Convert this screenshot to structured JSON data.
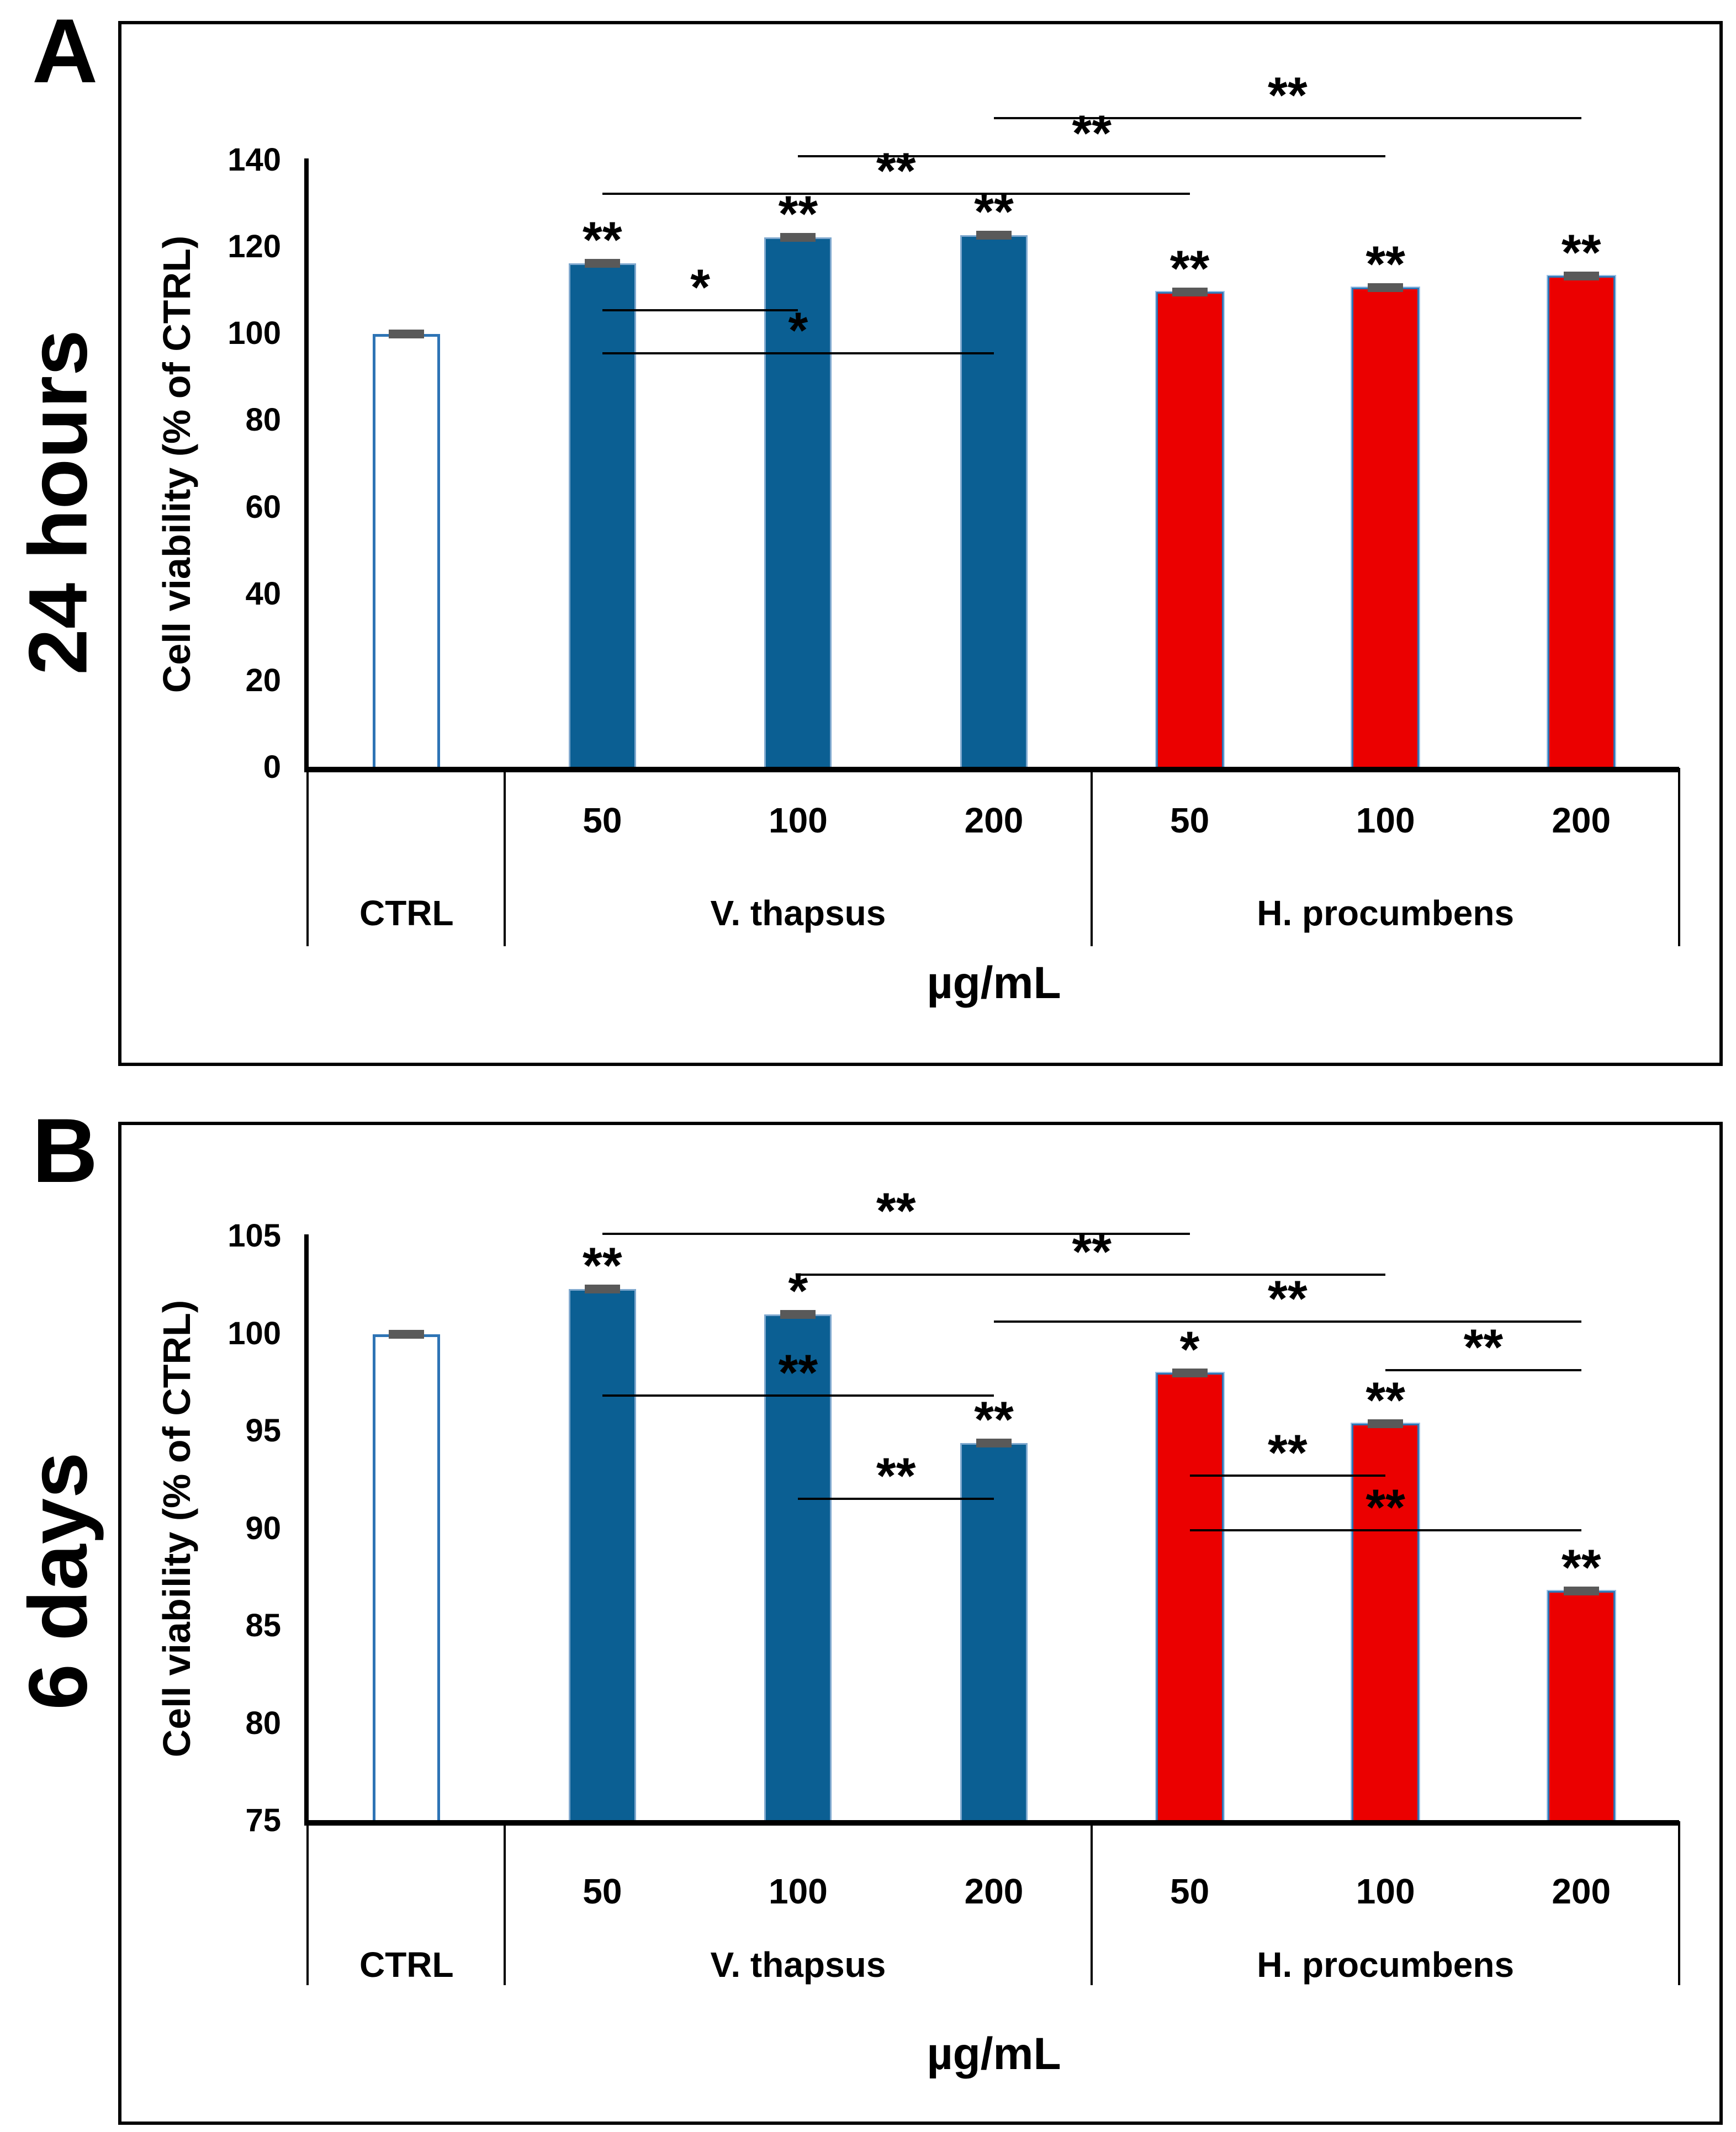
{
  "colors": {
    "blue_bar": "#0B5F93",
    "blue_bar_edge": "#7FA8CE",
    "red_bar": "#EB0000",
    "red_bar_edge": "#2E75B6",
    "ctrl_bar_border": "#2E74B5",
    "error_bar": "#595959",
    "line_color": "#000000"
  },
  "chart_data": [
    {
      "type": "bar",
      "panel_letter": "A",
      "time_label": "24 hours",
      "title": "",
      "ylabel": "Cell viability (% of CTRL)",
      "xlabel": "µg/mL",
      "ylim": [
        0,
        140
      ],
      "yticks": [
        0,
        20,
        40,
        60,
        80,
        100,
        120,
        140
      ],
      "grid": false,
      "legend": "none",
      "groups": [
        {
          "label": "CTRL",
          "span": 1
        },
        {
          "label": "V. thapsus",
          "span": 3
        },
        {
          "label": "H. procumbens",
          "span": 3
        }
      ],
      "bars": [
        {
          "category": "CTRL",
          "dose": "",
          "value": 100.0,
          "err": 0.4,
          "sig": "",
          "style": "ctrl"
        },
        {
          "category": "V. thapsus",
          "dose": "50",
          "value": 116.3,
          "err": 0.6,
          "sig": "**",
          "style": "blue"
        },
        {
          "category": "V. thapsus",
          "dose": "100",
          "value": 122.3,
          "err": 0.5,
          "sig": "**",
          "style": "blue"
        },
        {
          "category": "V. thapsus",
          "dose": "200",
          "value": 122.8,
          "err": 0.4,
          "sig": "**",
          "style": "blue"
        },
        {
          "category": "H. procumbens",
          "dose": "50",
          "value": 109.7,
          "err": 0.5,
          "sig": "**",
          "style": "red"
        },
        {
          "category": "H. procumbens",
          "dose": "100",
          "value": 110.7,
          "err": 0.6,
          "sig": "**",
          "style": "red"
        },
        {
          "category": "H. procumbens",
          "dose": "200",
          "value": 113.4,
          "err": 0.4,
          "sig": "**",
          "style": "red"
        }
      ],
      "comparisons": [
        {
          "bar1": 3,
          "bar2": 6,
          "y": 150.0,
          "label": "**"
        },
        {
          "bar1": 2,
          "bar2": 5,
          "y": 141.3,
          "label": "**"
        },
        {
          "bar1": 1,
          "bar2": 4,
          "y": 132.6,
          "label": "**"
        },
        {
          "bar1": 1,
          "bar2": 2,
          "y": 105.8,
          "label": "*"
        },
        {
          "bar1": 1,
          "bar2": 3,
          "y": 95.8,
          "label": "*"
        }
      ]
    },
    {
      "type": "bar",
      "panel_letter": "B",
      "time_label": "6 days",
      "title": "",
      "ylabel": "Cell viability (% of CTRL)",
      "xlabel": "µg/mL",
      "ylim": [
        75,
        105
      ],
      "yticks": [
        75,
        80,
        85,
        90,
        95,
        100,
        105
      ],
      "grid": false,
      "legend": "none",
      "groups": [
        {
          "label": "CTRL",
          "span": 1
        },
        {
          "label": "V. thapsus",
          "span": 3
        },
        {
          "label": "H. procumbens",
          "span": 3
        }
      ],
      "bars": [
        {
          "category": "CTRL",
          "dose": "",
          "value": 100.0,
          "err": 0.15,
          "sig": "",
          "style": "ctrl"
        },
        {
          "category": "V. thapsus",
          "dose": "50",
          "value": 102.3,
          "err": 0.2,
          "sig": "**",
          "style": "blue"
        },
        {
          "category": "V. thapsus",
          "dose": "100",
          "value": 101.0,
          "err": 0.2,
          "sig": "*",
          "style": "blue"
        },
        {
          "category": "V. thapsus",
          "dose": "200",
          "value": 94.4,
          "err": 0.15,
          "sig": "**",
          "style": "blue"
        },
        {
          "category": "H. procumbens",
          "dose": "50",
          "value": 98.0,
          "err": 0.2,
          "sig": "*",
          "style": "red"
        },
        {
          "category": "H. procumbens",
          "dose": "100",
          "value": 95.4,
          "err": 0.15,
          "sig": "**",
          "style": "red"
        },
        {
          "category": "H. procumbens",
          "dose": "200",
          "value": 86.8,
          "err": 0.15,
          "sig": "**",
          "style": "red"
        }
      ],
      "comparisons": [
        {
          "bar1": 1,
          "bar2": 4,
          "y": 105.2,
          "label": "**"
        },
        {
          "bar1": 2,
          "bar2": 5,
          "y": 103.1,
          "label": "**"
        },
        {
          "bar1": 3,
          "bar2": 6,
          "y": 100.7,
          "label": "**"
        },
        {
          "bar1": 5,
          "bar2": 6,
          "y": 98.2,
          "label": "**"
        },
        {
          "bar1": 1,
          "bar2": 3,
          "y": 96.9,
          "label": "**"
        },
        {
          "bar1": 4,
          "bar2": 5,
          "y": 92.8,
          "label": "**"
        },
        {
          "bar1": 2,
          "bar2": 3,
          "y": 91.6,
          "label": "**"
        },
        {
          "bar1": 4,
          "bar2": 6,
          "y": 90.0,
          "label": "**"
        }
      ]
    }
  ]
}
